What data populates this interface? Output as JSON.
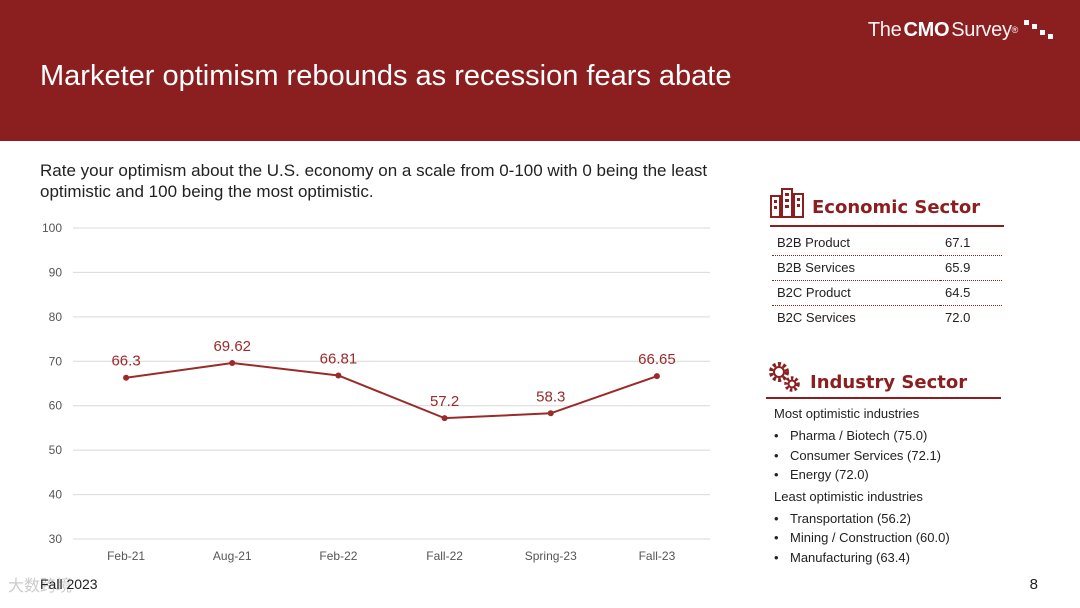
{
  "brand": {
    "prefix": "The",
    "bold": "CMO",
    "suffix": "Survey",
    "reg": "®"
  },
  "title": "Marketer optimism rebounds as recession fears abate",
  "question": "Rate your optimism about the U.S. economy on a scale from 0-100 with 0 being the least optimistic and 100 being the most optimistic.",
  "chart_data": {
    "type": "line",
    "title": "",
    "xlabel": "",
    "ylabel": "",
    "categories": [
      "Feb-21",
      "Aug-21",
      "Feb-22",
      "Fall-22",
      "Spring-23",
      "Fall-23"
    ],
    "values": [
      66.3,
      69.62,
      66.81,
      57.2,
      58.3,
      66.65
    ],
    "value_labels": [
      "66.3",
      "69.62",
      "66.81",
      "57.2",
      "58.3",
      "66.65"
    ],
    "ylim": [
      30,
      100
    ],
    "yticks": [
      100,
      90,
      80,
      70,
      60,
      50,
      40,
      30
    ],
    "grid": true,
    "legend": "none",
    "color": "#9b2a2a"
  },
  "economic_sector": {
    "title": "Economic Sector",
    "icon": "buildings-icon",
    "rows": [
      {
        "label": "B2B Product",
        "value": "67.1"
      },
      {
        "label": "B2B Services",
        "value": "65.9"
      },
      {
        "label": "B2C Product",
        "value": "64.5"
      },
      {
        "label": "B2C Services",
        "value": "72.0"
      }
    ]
  },
  "industry_sector": {
    "title": "Industry Sector",
    "icon": "gears-icon",
    "most_label": "Most optimistic industries",
    "most": [
      "Pharma / Biotech (75.0)",
      "Consumer Services (72.1)",
      "Energy (72.0)"
    ],
    "least_label": "Least optimistic industries",
    "least": [
      "Transportation (56.2)",
      "Mining / Construction (60.0)",
      "Manufacturing (63.4)"
    ]
  },
  "footer": {
    "edition": "Fall 2023",
    "page": "8"
  },
  "watermark": "大数跨境",
  "colors": {
    "accent": "#8b1e1e",
    "grid": "#d9d9d9",
    "text": "#222222"
  }
}
